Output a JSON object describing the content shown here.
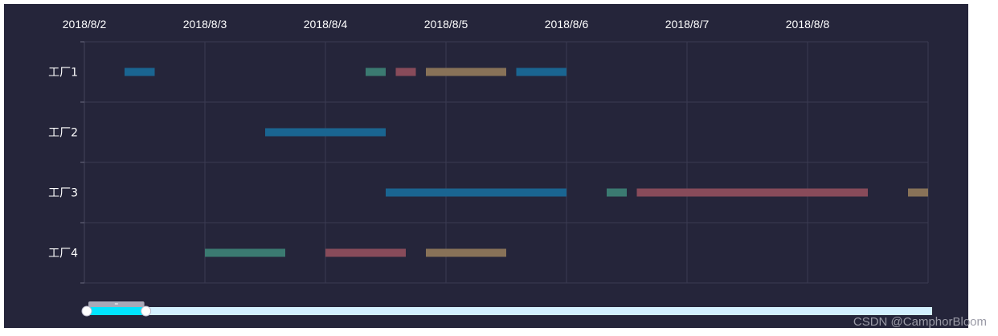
{
  "chart_data": {
    "type": "gantt",
    "x_ticks": [
      "2018/8/2",
      "2018/8/3",
      "2018/8/4",
      "2018/8/5",
      "2018/8/6",
      "2018/8/7",
      "2018/8/8"
    ],
    "xlim": [
      "2018/8/2 00:00",
      "2018/8/9 00:00"
    ],
    "categories": [
      "工厂1",
      "工厂2",
      "工厂3",
      "工厂4"
    ],
    "grid": true,
    "colors": {
      "blue": "#1a6591",
      "teal": "#3b7a71",
      "red": "#884b5a",
      "tan": "#887258"
    },
    "tasks": [
      {
        "category": "工厂1",
        "start": "2018/8/2 08:00",
        "end": "2018/8/2 14:00",
        "color": "blue"
      },
      {
        "category": "工厂1",
        "start": "2018/8/4 08:00",
        "end": "2018/8/4 12:00",
        "color": "teal"
      },
      {
        "category": "工厂1",
        "start": "2018/8/4 14:00",
        "end": "2018/8/4 18:00",
        "color": "red"
      },
      {
        "category": "工厂1",
        "start": "2018/8/4 20:00",
        "end": "2018/8/5 12:00",
        "color": "tan"
      },
      {
        "category": "工厂1",
        "start": "2018/8/5 14:00",
        "end": "2018/8/6 00:00",
        "color": "blue"
      },
      {
        "category": "工厂2",
        "start": "2018/8/3 12:00",
        "end": "2018/8/4 12:00",
        "color": "blue"
      },
      {
        "category": "工厂3",
        "start": "2018/8/4 12:00",
        "end": "2018/8/6 00:00",
        "color": "blue"
      },
      {
        "category": "工厂3",
        "start": "2018/8/6 08:00",
        "end": "2018/8/6 12:00",
        "color": "teal"
      },
      {
        "category": "工厂3",
        "start": "2018/8/6 14:00",
        "end": "2018/8/8 12:00",
        "color": "red"
      },
      {
        "category": "工厂3",
        "start": "2018/8/8 20:00",
        "end": "2018/8/9 00:00",
        "color": "tan"
      },
      {
        "category": "工厂4",
        "start": "2018/8/3 00:00",
        "end": "2018/8/3 16:00",
        "color": "teal"
      },
      {
        "category": "工厂4",
        "start": "2018/8/4 00:00",
        "end": "2018/8/4 16:00",
        "color": "red"
      },
      {
        "category": "工厂4",
        "start": "2018/8/4 20:00",
        "end": "2018/8/5 12:00",
        "color": "tan"
      }
    ]
  },
  "data_zoom": {
    "start_fraction": 0.0,
    "end_fraction": 0.07,
    "track_color": "#d3f0ff",
    "handle_color": "#00e5ff"
  },
  "watermark": "CSDN @CamphorBloom"
}
